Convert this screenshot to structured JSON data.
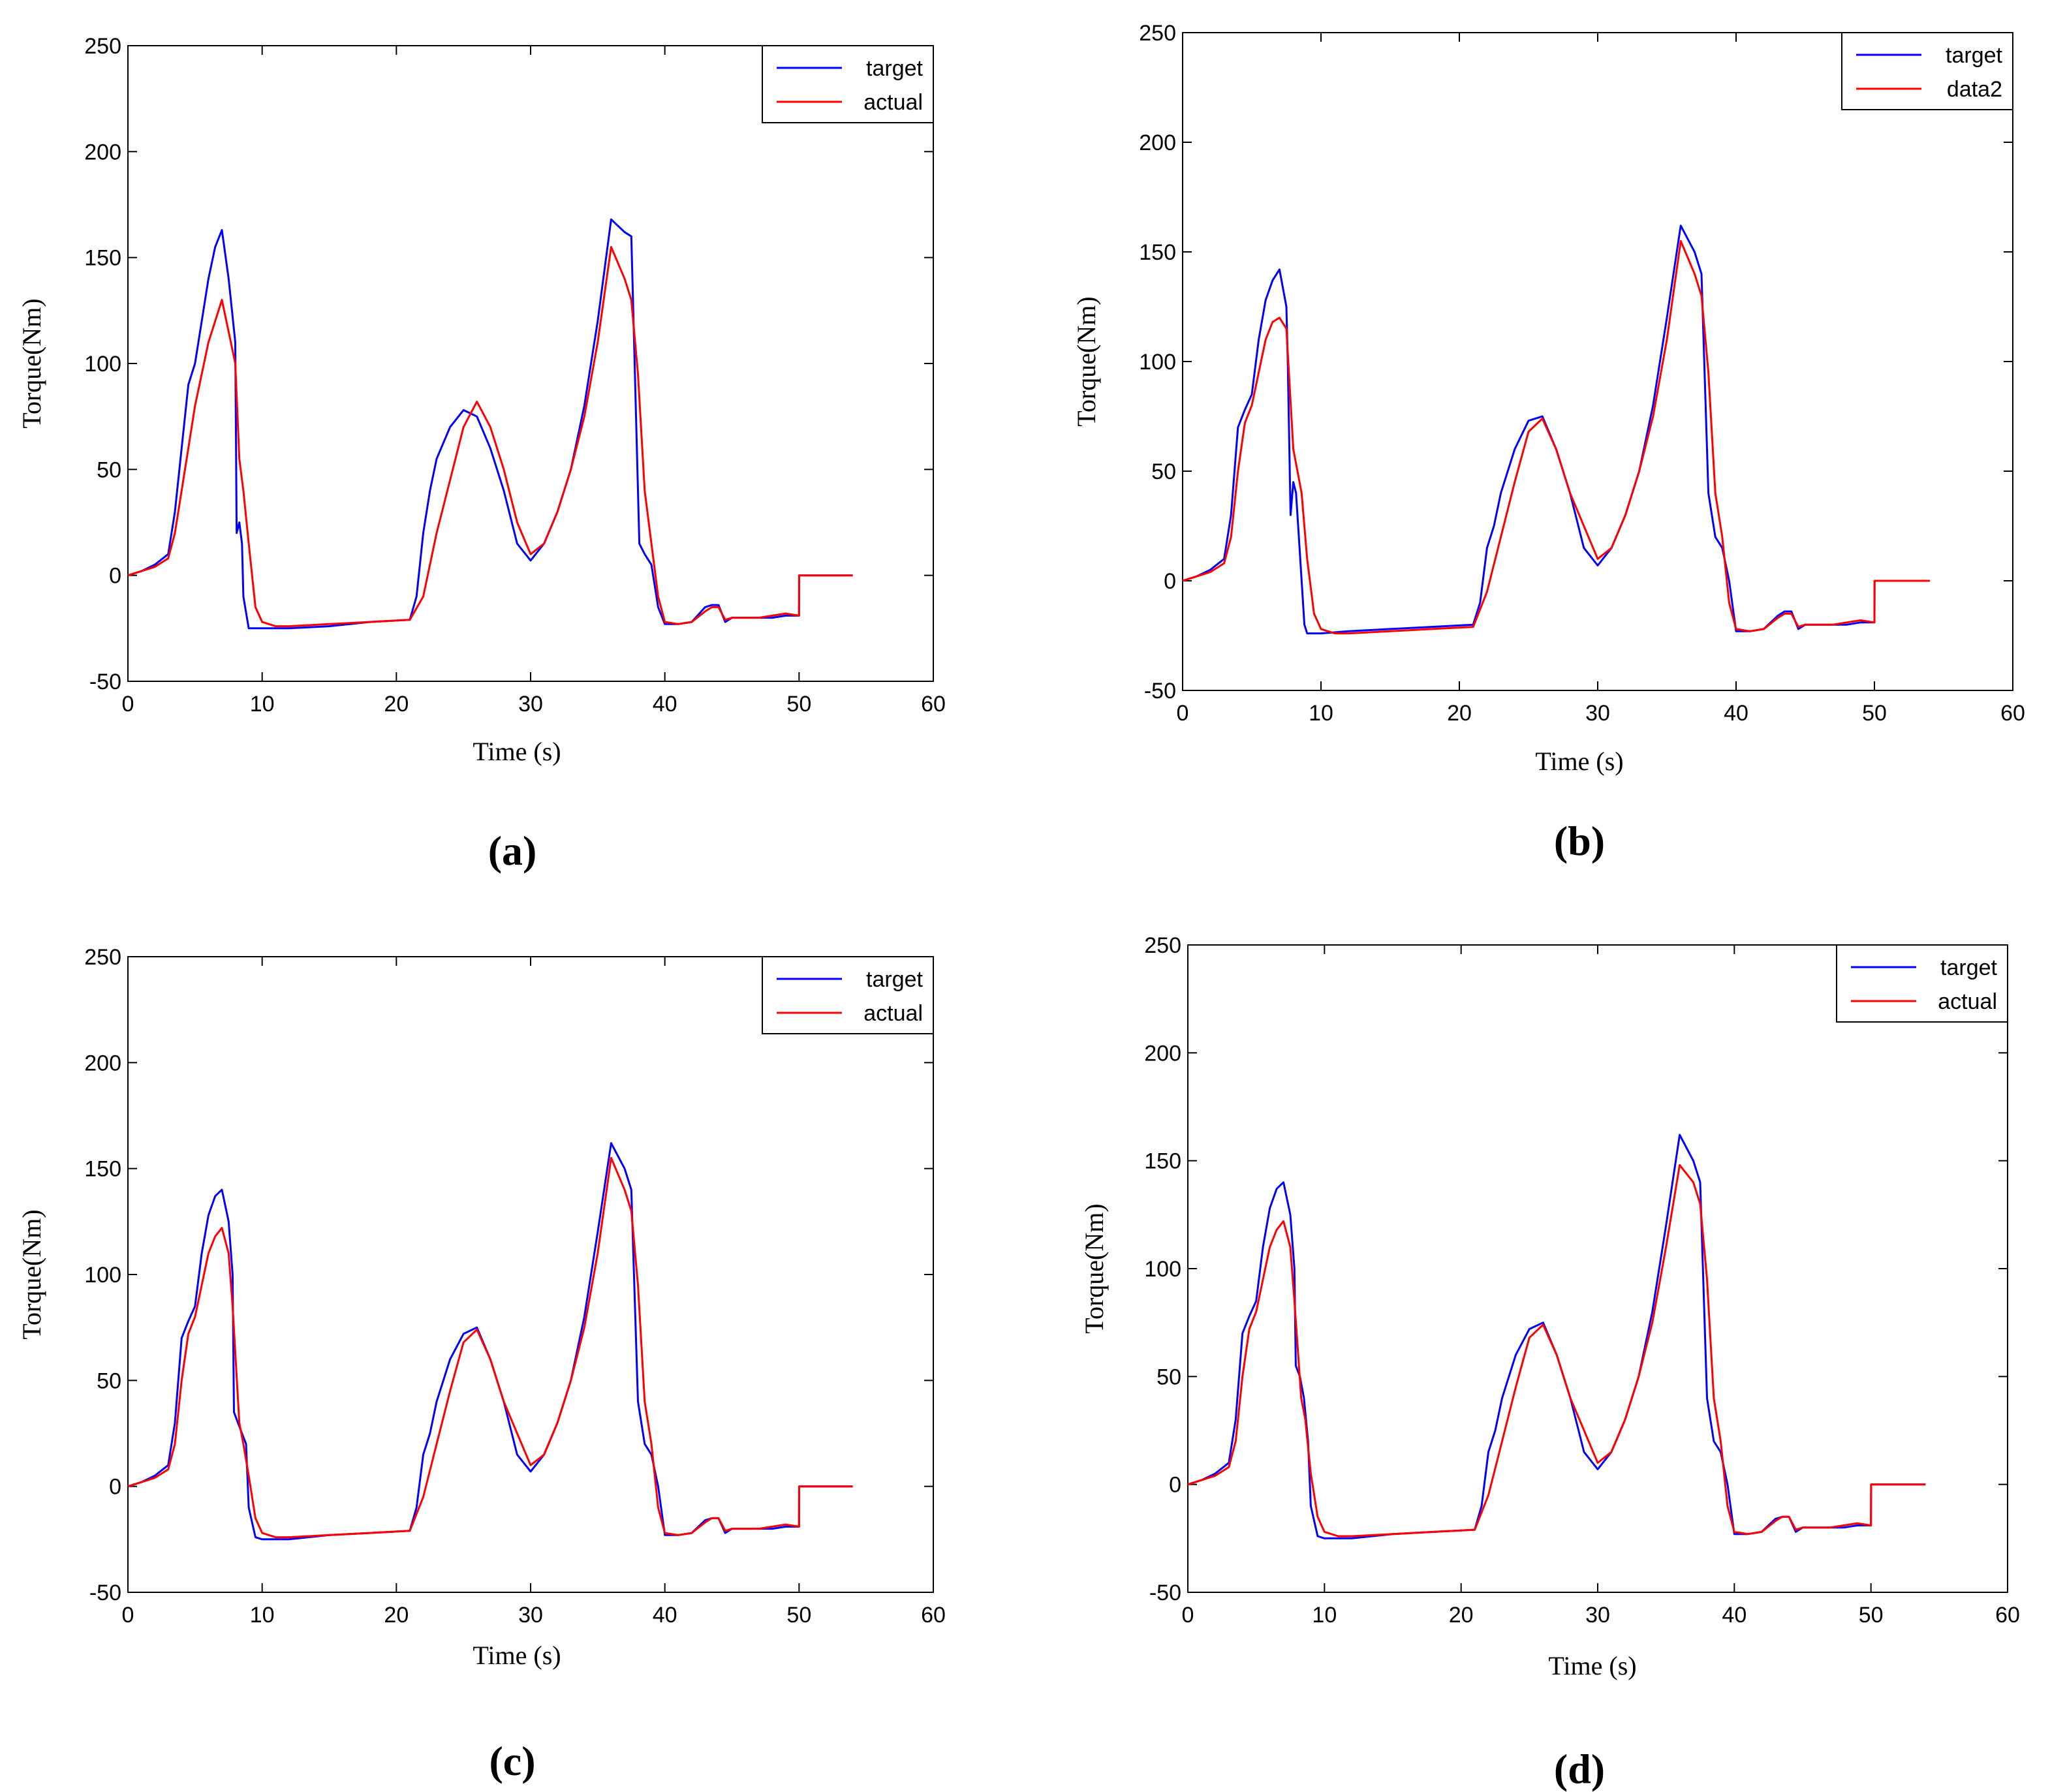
{
  "chart_data": [
    {
      "type": "line",
      "panel_label": "(a)",
      "xlabel": "Time (s)",
      "ylabel": "Torque(Nm)",
      "xlim": [
        0,
        60
      ],
      "ylim": [
        -50,
        250
      ],
      "xticks": [
        0,
        10,
        20,
        30,
        40,
        50,
        60
      ],
      "yticks": [
        -50,
        0,
        50,
        100,
        150,
        200,
        250
      ],
      "legend": "top-right",
      "grid": false,
      "series": [
        {
          "name": "target",
          "color": "#0000ff",
          "x": [
            0,
            1,
            2,
            3,
            3.5,
            4,
            4.5,
            5,
            5.5,
            6,
            6.5,
            7,
            7.5,
            8,
            8.1,
            8.3,
            8.5,
            8.6,
            9,
            9.5,
            10,
            12,
            15,
            18,
            21,
            21.5,
            22,
            22.5,
            23,
            24,
            25,
            26,
            27,
            28,
            29,
            30,
            31,
            32,
            33,
            34,
            35,
            36,
            37,
            37.5,
            38,
            38.1,
            38.5,
            39,
            39.5,
            40,
            41,
            42,
            43,
            43.5,
            44,
            44.5,
            45,
            46,
            47,
            48,
            49,
            50,
            50.01,
            54
          ],
          "y": [
            0,
            2,
            5,
            10,
            30,
            60,
            90,
            100,
            120,
            140,
            155,
            163,
            140,
            110,
            20,
            25,
            15,
            -10,
            -25,
            -25,
            -25,
            -25,
            -24,
            -22,
            -21,
            -10,
            20,
            40,
            55,
            70,
            78,
            75,
            60,
            40,
            15,
            7,
            15,
            30,
            50,
            80,
            120,
            168,
            162,
            160,
            40,
            15,
            10,
            5,
            -15,
            -23,
            -23,
            -22,
            -15,
            -14,
            -14,
            -22,
            -20,
            -20,
            -20,
            -20,
            -19,
            -19,
            0,
            0
          ]
        },
        {
          "name": "actual",
          "color": "#ff0000",
          "x": [
            0,
            1,
            2,
            3,
            3.5,
            4,
            4.5,
            5,
            5.5,
            6,
            6.5,
            7,
            7.5,
            8,
            8.3,
            8.6,
            9,
            9.5,
            10,
            11,
            12,
            15,
            18,
            21,
            22,
            23,
            24,
            25,
            26,
            27,
            28,
            29,
            30,
            31,
            32,
            33,
            34,
            35,
            36,
            37,
            37.5,
            38,
            38.5,
            39,
            39.5,
            40,
            41,
            42,
            43,
            43.5,
            44,
            44.5,
            45,
            46,
            47,
            48,
            49,
            50,
            50.01,
            54
          ],
          "y": [
            0,
            2,
            4,
            8,
            20,
            40,
            60,
            80,
            95,
            110,
            120,
            130,
            115,
            100,
            55,
            40,
            15,
            -15,
            -22,
            -24,
            -24,
            -23,
            -22,
            -21,
            -10,
            20,
            45,
            70,
            82,
            70,
            50,
            25,
            10,
            15,
            30,
            50,
            75,
            110,
            155,
            140,
            130,
            95,
            40,
            15,
            -10,
            -22,
            -23,
            -22,
            -17,
            -15,
            -15,
            -21,
            -20,
            -20,
            -20,
            -19,
            -18,
            -19,
            0,
            0
          ]
        }
      ]
    },
    {
      "type": "line",
      "panel_label": "(b)",
      "xlabel": "Time (s)",
      "ylabel": "Torque(Nm)",
      "xlim": [
        0,
        60
      ],
      "ylim": [
        -50,
        250
      ],
      "xticks": [
        0,
        10,
        20,
        30,
        40,
        50,
        60
      ],
      "yticks": [
        -50,
        0,
        50,
        100,
        150,
        200,
        250
      ],
      "legend": "top-right",
      "grid": false,
      "series": [
        {
          "name": "target",
          "color": "#0000ff",
          "x": [
            0,
            1,
            2,
            3,
            3.5,
            4,
            4.5,
            5,
            5.5,
            6,
            6.5,
            7,
            7.5,
            7.6,
            7.8,
            8,
            8.2,
            8.4,
            8.8,
            9,
            10,
            12,
            15,
            18,
            21,
            21.5,
            22,
            22.5,
            23,
            24,
            25,
            26,
            27,
            28,
            29,
            30,
            31,
            32,
            33,
            34,
            35,
            36,
            37,
            37.5,
            38,
            38.5,
            39,
            39.5,
            40,
            41,
            42,
            43,
            43.5,
            44,
            44.5,
            45,
            46,
            47,
            48,
            49,
            50,
            50.01,
            54
          ],
          "y": [
            0,
            2,
            5,
            10,
            30,
            70,
            78,
            85,
            110,
            128,
            137,
            142,
            125,
            100,
            30,
            45,
            40,
            20,
            -20,
            -24,
            -24,
            -23,
            -22,
            -21,
            -20,
            -10,
            15,
            25,
            40,
            60,
            73,
            75,
            60,
            40,
            15,
            7,
            15,
            30,
            50,
            80,
            120,
            162,
            150,
            140,
            40,
            20,
            15,
            0,
            -23,
            -23,
            -22,
            -16,
            -14,
            -14,
            -22,
            -20,
            -20,
            -20,
            -20,
            -19,
            -19,
            0,
            0
          ]
        },
        {
          "name": "data2",
          "color": "#ff0000",
          "x": [
            0,
            1,
            2,
            3,
            3.5,
            4,
            4.5,
            5,
            5.5,
            6,
            6.5,
            7,
            7.5,
            8,
            8.3,
            8.6,
            9,
            9.5,
            10,
            11,
            12,
            15,
            18,
            21,
            22,
            23,
            24,
            25,
            26,
            27,
            28,
            29,
            30,
            31,
            32,
            33,
            34,
            35,
            36,
            37,
            37.5,
            38,
            38.5,
            39,
            39.5,
            40,
            41,
            42,
            43,
            43.5,
            44,
            44.5,
            45,
            46,
            47,
            48,
            49,
            50,
            50.01,
            54
          ],
          "y": [
            0,
            2,
            4,
            8,
            20,
            50,
            72,
            80,
            95,
            110,
            118,
            120,
            115,
            60,
            50,
            40,
            10,
            -15,
            -22,
            -24,
            -24,
            -23,
            -22,
            -21,
            -5,
            20,
            45,
            68,
            74,
            60,
            40,
            25,
            10,
            15,
            30,
            50,
            75,
            110,
            155,
            140,
            130,
            95,
            40,
            20,
            -10,
            -22,
            -23,
            -22,
            -17,
            -15,
            -15,
            -21,
            -20,
            -20,
            -20,
            -19,
            -18,
            -19,
            0,
            0
          ]
        }
      ]
    },
    {
      "type": "line",
      "panel_label": "(c)",
      "xlabel": "Time (s)",
      "ylabel": "Torque(Nm)",
      "xlim": [
        0,
        60
      ],
      "ylim": [
        -50,
        250
      ],
      "xticks": [
        0,
        10,
        20,
        30,
        40,
        50,
        60
      ],
      "yticks": [
        -50,
        0,
        50,
        100,
        150,
        200,
        250
      ],
      "legend": "top-right",
      "grid": false,
      "series": [
        {
          "name": "target",
          "color": "#0000ff",
          "x": [
            0,
            1,
            2,
            3,
            3.5,
            4,
            4.5,
            5,
            5.5,
            6,
            6.5,
            7,
            7.5,
            7.8,
            7.9,
            8.2,
            8.5,
            8.8,
            9,
            9.5,
            10,
            12,
            15,
            18,
            21,
            21.5,
            22,
            22.5,
            23,
            24,
            25,
            26,
            27,
            28,
            29,
            30,
            31,
            32,
            33,
            34,
            35,
            36,
            37,
            37.5,
            38,
            38.5,
            39,
            39.5,
            40,
            41,
            42,
            43,
            43.5,
            44,
            44.5,
            45,
            46,
            47,
            48,
            49,
            50,
            50.01,
            54
          ],
          "y": [
            0,
            2,
            5,
            10,
            30,
            70,
            78,
            85,
            110,
            128,
            137,
            140,
            125,
            100,
            35,
            30,
            25,
            20,
            -10,
            -24,
            -25,
            -25,
            -23,
            -22,
            -21,
            -10,
            15,
            25,
            40,
            60,
            72,
            75,
            60,
            40,
            15,
            7,
            15,
            30,
            50,
            80,
            120,
            162,
            150,
            140,
            40,
            20,
            15,
            0,
            -23,
            -23,
            -22,
            -16,
            -15,
            -15,
            -22,
            -20,
            -20,
            -20,
            -20,
            -19,
            -19,
            0,
            0
          ]
        },
        {
          "name": "actual",
          "color": "#ff0000",
          "x": [
            0,
            1,
            2,
            3,
            3.5,
            4,
            4.5,
            5,
            5.5,
            6,
            6.5,
            7,
            7.5,
            7.8,
            8.3,
            8.6,
            9,
            9.5,
            10,
            11,
            12,
            15,
            18,
            21,
            22,
            23,
            24,
            25,
            26,
            27,
            28,
            29,
            30,
            31,
            32,
            33,
            34,
            35,
            36,
            37,
            37.5,
            38,
            38.5,
            39,
            39.5,
            40,
            41,
            42,
            43,
            43.5,
            44,
            44.5,
            45,
            46,
            47,
            48,
            49,
            50,
            50.01,
            54
          ],
          "y": [
            0,
            2,
            4,
            8,
            20,
            50,
            72,
            80,
            95,
            110,
            118,
            122,
            110,
            85,
            30,
            20,
            5,
            -15,
            -22,
            -24,
            -24,
            -23,
            -22,
            -21,
            -5,
            20,
            45,
            68,
            74,
            60,
            40,
            25,
            10,
            15,
            30,
            50,
            75,
            110,
            155,
            140,
            130,
            95,
            40,
            20,
            -10,
            -22,
            -23,
            -22,
            -17,
            -15,
            -15,
            -21,
            -20,
            -20,
            -20,
            -19,
            -18,
            -19,
            0,
            0
          ]
        }
      ]
    },
    {
      "type": "line",
      "panel_label": "(d)",
      "xlabel": "Time (s)",
      "ylabel": "Torque(Nm)",
      "xlim": [
        0,
        60
      ],
      "ylim": [
        -50,
        250
      ],
      "xticks": [
        0,
        10,
        20,
        30,
        40,
        50,
        60
      ],
      "yticks": [
        -50,
        0,
        50,
        100,
        150,
        200,
        250
      ],
      "legend": "top-right",
      "grid": false,
      "series": [
        {
          "name": "target",
          "color": "#0000ff",
          "x": [
            0,
            1,
            2,
            3,
            3.5,
            4,
            4.5,
            5,
            5.5,
            6,
            6.5,
            7,
            7.5,
            7.8,
            7.9,
            8.2,
            8.5,
            8.8,
            9,
            9.5,
            10,
            12,
            15,
            18,
            21,
            21.5,
            22,
            22.5,
            23,
            24,
            25,
            26,
            27,
            28,
            29,
            30,
            31,
            32,
            33,
            34,
            35,
            36,
            37,
            37.5,
            38,
            38.5,
            39,
            39.5,
            40,
            41,
            42,
            43,
            43.5,
            44,
            44.5,
            45,
            46,
            47,
            48,
            49,
            50,
            50.01,
            54
          ],
          "y": [
            0,
            2,
            5,
            10,
            30,
            70,
            78,
            85,
            110,
            128,
            137,
            140,
            125,
            100,
            55,
            50,
            40,
            20,
            -10,
            -24,
            -25,
            -25,
            -23,
            -22,
            -21,
            -10,
            15,
            25,
            40,
            60,
            72,
            75,
            60,
            40,
            15,
            7,
            15,
            30,
            50,
            80,
            120,
            162,
            150,
            140,
            40,
            20,
            15,
            0,
            -23,
            -23,
            -22,
            -16,
            -15,
            -15,
            -22,
            -20,
            -20,
            -20,
            -20,
            -19,
            -19,
            0,
            0
          ]
        },
        {
          "name": "actual",
          "color": "#ff0000",
          "x": [
            0,
            1,
            2,
            3,
            3.5,
            4,
            4.5,
            5,
            5.5,
            6,
            6.5,
            7,
            7.5,
            7.8,
            8.3,
            8.6,
            9,
            9.5,
            10,
            11,
            12,
            15,
            18,
            21,
            22,
            23,
            24,
            25,
            26,
            27,
            28,
            29,
            30,
            31,
            32,
            33,
            34,
            35,
            36,
            37,
            37.5,
            38,
            38.5,
            39,
            39.5,
            40,
            41,
            42,
            43,
            43.5,
            44,
            44.5,
            45,
            46,
            47,
            48,
            49,
            50,
            50.01,
            54
          ],
          "y": [
            0,
            2,
            4,
            8,
            20,
            50,
            72,
            80,
            95,
            110,
            118,
            122,
            110,
            85,
            40,
            30,
            5,
            -15,
            -22,
            -24,
            -24,
            -23,
            -22,
            -21,
            -5,
            20,
            45,
            68,
            74,
            60,
            40,
            25,
            10,
            15,
            30,
            50,
            75,
            110,
            148,
            140,
            130,
            95,
            40,
            20,
            -10,
            -22,
            -23,
            -22,
            -17,
            -15,
            -15,
            -21,
            -20,
            -20,
            -20,
            -19,
            -18,
            -19,
            0,
            0
          ]
        }
      ]
    }
  ]
}
